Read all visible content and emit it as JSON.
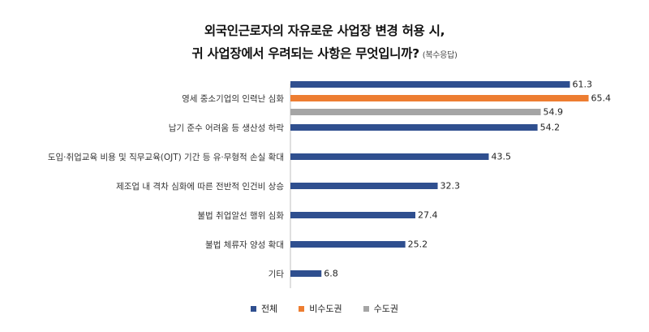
{
  "title_line1": "외국인근로자의 자유로운 사업장 변경 허용 시,",
  "title_line2": "귀 사업장에서 우려되는 사항은 무엇입니까?",
  "title_note": "(복수응답)",
  "chart_data": {
    "type": "bar",
    "orientation": "horizontal",
    "xlim": [
      0,
      70
    ],
    "categories": [
      "영세 중소기업의 인력난 심화",
      "납기 준수 어려움 등 생산성 하락",
      "도입·취업교육 비용 및 직무교육(OJT) 기간 등 유·무형적 손실 확대",
      "제조업 내 격차 심화에 따른 전반적 인건비 상승",
      "불법 취업알선 행위 심화",
      "불법 체류자 양성 확대",
      "기타"
    ],
    "series": [
      {
        "name": "전체",
        "color": "#2f4f8f",
        "values": [
          61.3,
          54.2,
          43.5,
          32.3,
          27.4,
          25.2,
          6.8
        ]
      },
      {
        "name": "비수도권",
        "color": "#ed7d31",
        "values": [
          65.4,
          null,
          null,
          null,
          null,
          null,
          null
        ]
      },
      {
        "name": "수도권",
        "color": "#a5a5a5",
        "values": [
          54.9,
          null,
          null,
          null,
          null,
          null,
          null
        ]
      }
    ],
    "legend_position": "bottom",
    "grid": false
  }
}
